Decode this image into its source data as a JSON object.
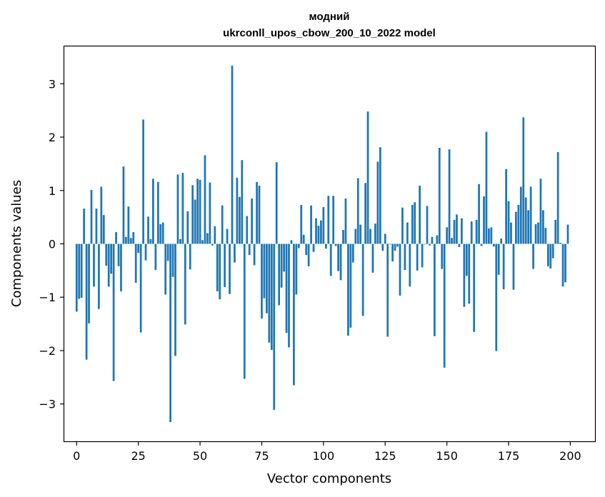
{
  "chart_data": {
    "type": "bar",
    "title_line1": "модний",
    "title_line2": "ukrconll_upos_cbow_200_10_2022 model",
    "xlabel": "Vector components",
    "ylabel": "Components values",
    "xlim": [
      -5,
      210
    ],
    "ylim": [
      -3.7,
      3.7
    ],
    "x_ticks": [
      0,
      25,
      50,
      75,
      100,
      125,
      150,
      175,
      200
    ],
    "y_ticks": [
      -3,
      -2,
      -1,
      0,
      1,
      2,
      3
    ],
    "x_tick_labels": [
      "0",
      "25",
      "50",
      "75",
      "100",
      "125",
      "150",
      "175",
      "200"
    ],
    "y_tick_labels": [
      "−3",
      "−2",
      "−1",
      "0",
      "1",
      "2",
      "3"
    ],
    "bar_color": "#1f77b4",
    "grid": false,
    "values": [
      -1.27,
      -1.03,
      -1.01,
      0.66,
      -2.17,
      -1.49,
      1.01,
      -0.8,
      0.66,
      -1.22,
      1.07,
      0.54,
      -0.41,
      -0.8,
      -0.56,
      -2.57,
      0.22,
      -0.42,
      -0.89,
      1.45,
      0.13,
      0.7,
      0.11,
      0.22,
      -0.73,
      -0.17,
      -1.66,
      2.33,
      -0.31,
      0.51,
      0.09,
      1.22,
      -0.49,
      1.16,
      0.37,
      0.4,
      -0.95,
      -0.32,
      -3.34,
      -0.62,
      -2.1,
      1.3,
      0.09,
      1.33,
      -1.51,
      0.61,
      -0.48,
      1.1,
      0.83,
      1.22,
      1.2,
      0.07,
      1.66,
      0.2,
      1.15,
      -0.03,
      0.33,
      -0.89,
      -1.04,
      0.72,
      -0.81,
      0.28,
      -0.94,
      3.34,
      -0.35,
      1.24,
      0.88,
      1.57,
      -2.53,
      0.52,
      -0.21,
      0.85,
      -0.4,
      1.16,
      1.09,
      -1.4,
      -1.02,
      -1.3,
      -1.85,
      -1.99,
      -3.11,
      1.53,
      -1.15,
      -0.82,
      -0.52,
      -1.67,
      -1.94,
      0.07,
      -2.65,
      -0.95,
      -0.08,
      0.73,
      0.17,
      -0.21,
      -0.42,
      0.72,
      -0.15,
      0.48,
      0.34,
      0.44,
      0.69,
      -0.09,
      0.9,
      -0.6,
      0.9,
      -0.04,
      -0.51,
      -0.68,
      0.26,
      0.85,
      -1.72,
      -1.57,
      -0.35,
      0.28,
      1.23,
      0.36,
      -1.35,
      1.14,
      2.48,
      0.28,
      -0.54,
      0.38,
      1.54,
      1.81,
      -0.13,
      0.19,
      -1.74,
      -0.01,
      -0.33,
      -0.13,
      -0.05,
      -0.97,
      0.68,
      -0.49,
      0.4,
      -0.8,
      0.73,
      0.78,
      -0.5,
      1.09,
      -0.44,
      -0.01,
      0.71,
      -0.03,
      0.13,
      -1.73,
      0.16,
      1.8,
      -0.47,
      -2.32,
      0.31,
      1.77,
      0.11,
      0.45,
      0.55,
      -0.06,
      0.48,
      -1.18,
      -0.6,
      -1.12,
      0.42,
      -1.65,
      0.45,
      1.12,
      -0.04,
      0.89,
      2.1,
      0.29,
      0.31,
      -0.05,
      -2.01,
      -0.58,
      0.1,
      -0.85,
      1.4,
      0.8,
      0.4,
      -0.86,
      0.6,
      0.73,
      1.07,
      2.37,
      0.87,
      0.63,
      1.07,
      -0.47,
      0.37,
      0.4,
      1.22,
      0.63,
      0.3,
      -0.42,
      -0.46,
      -0.27,
      0.45,
      1.72,
      0.02,
      -0.8,
      -0.72,
      0.36
    ]
  }
}
